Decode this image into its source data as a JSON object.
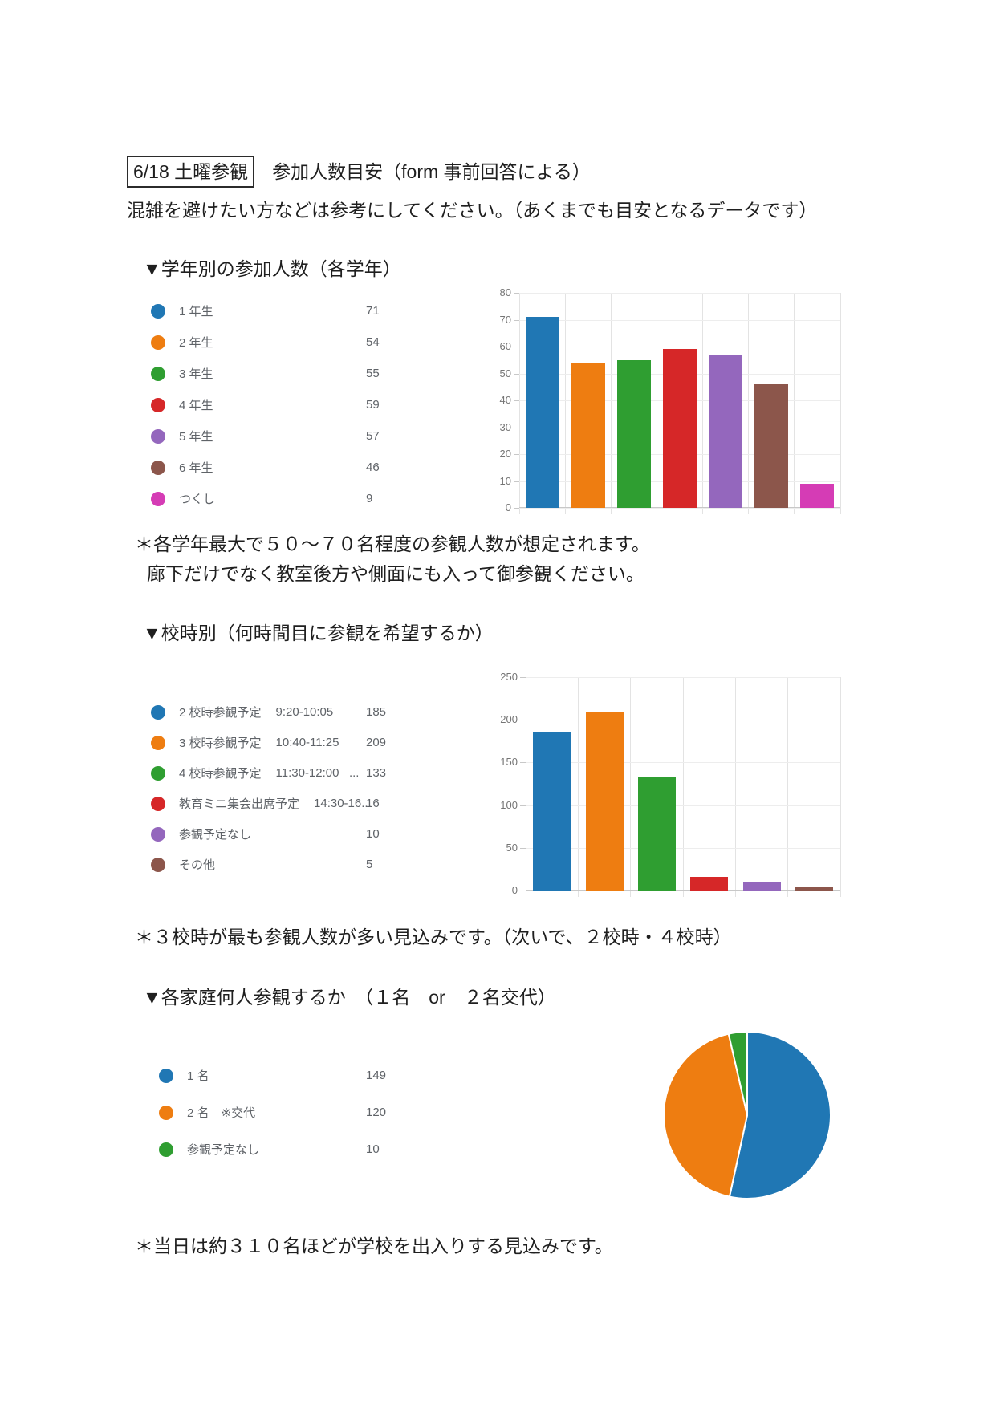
{
  "page": {
    "title_boxed": "6/18 土曜参観",
    "title_rest": "参加人数目安（form 事前回答による）",
    "subtitle": "混雑を避けたい方などは参考にしてください。（あくまでも目安となるデータです）",
    "note1_line1": "＊各学年最大で５０～７０名程度の参観人数が想定されます。",
    "note1_line2": "廊下だけでなく教室後方や側面にも入って御参観ください。",
    "note2": "＊３校時が最も参観人数が多い見込みです。（次いで、２校時・４校時）",
    "note3": "＊当日は約３１０名ほどが学校を出入りする見込みです。"
  },
  "chart_data": [
    {
      "type": "bar",
      "header": "▼学年別の参加人数（各学年）",
      "title": "学年別の参加人数（各学年）",
      "categories": [
        "1 年生",
        "2 年生",
        "3 年生",
        "4 年生",
        "5 年生",
        "6 年生",
        "つくし"
      ],
      "values": [
        71,
        54,
        55,
        59,
        57,
        46,
        9
      ],
      "colors": [
        "#2077b4",
        "#ee7d11",
        "#2f9e31",
        "#d62728",
        "#9467bd",
        "#8c564b",
        "#d53cb5"
      ],
      "ylim": [
        0,
        80
      ],
      "yticks": [
        0,
        10,
        20,
        30,
        40,
        50,
        60,
        70,
        80
      ],
      "xlabel": "",
      "ylabel": "",
      "grid": true,
      "legend_position": "left",
      "legend": [
        {
          "label": "1 年生",
          "value": "71"
        },
        {
          "label": "2 年生",
          "value": "54"
        },
        {
          "label": "3 年生",
          "value": "55"
        },
        {
          "label": "4 年生",
          "value": "59"
        },
        {
          "label": "5 年生",
          "value": "57"
        },
        {
          "label": "6 年生",
          "value": "46"
        },
        {
          "label": "つくし",
          "value": "9"
        }
      ]
    },
    {
      "type": "bar",
      "header": "▼校時別（何時間目に参観を希望するか）",
      "title": "校時別（何時間目に参観を希望するか）",
      "categories": [
        "2 校時参観予定 9:20-10:05",
        "3 校時参観予定 10:40-11:25",
        "4 校時参観予定 11:30-12:00 ...",
        "教育ミニ集会出席予定 14:30-16...",
        "参観予定なし",
        "その他"
      ],
      "values": [
        185,
        209,
        133,
        16,
        10,
        5
      ],
      "colors": [
        "#2077b4",
        "#ee7d11",
        "#2f9e31",
        "#d62728",
        "#9467bd",
        "#8c564b"
      ],
      "ylim": [
        0,
        250
      ],
      "yticks": [
        0,
        50,
        100,
        150,
        200,
        250
      ],
      "xlabel": "",
      "ylabel": "",
      "grid": true,
      "legend_position": "left",
      "legend": [
        {
          "label": "2 校時参観予定",
          "time": "9:20-10:05",
          "value": "185"
        },
        {
          "label": "3 校時参観予定",
          "time": "10:40-11:25",
          "value": "209"
        },
        {
          "label": "4 校時参観予定",
          "time": "11:30-12:00   ...",
          "value": "133"
        },
        {
          "label": "教育ミニ集会出席予定",
          "time": "14:30-16...",
          "value": "16"
        },
        {
          "label": "参観予定なし",
          "value": "10"
        },
        {
          "label": "その他",
          "value": "5"
        }
      ]
    },
    {
      "type": "pie",
      "header": "▼各家庭何人参観するか　（１名　or　２名交代）",
      "title": "各家庭何人参観するか（１名 or ２名交代）",
      "categories": [
        "1 名",
        "2 名　※交代",
        "参観予定なし"
      ],
      "values": [
        149,
        120,
        10
      ],
      "colors": [
        "#2077b4",
        "#ee7d11",
        "#2f9e31"
      ],
      "legend_position": "left",
      "legend": [
        {
          "label": "1 名",
          "value": "149"
        },
        {
          "label": "2 名　※交代",
          "value": "120"
        },
        {
          "label": "参観予定なし",
          "value": "10"
        }
      ]
    }
  ]
}
